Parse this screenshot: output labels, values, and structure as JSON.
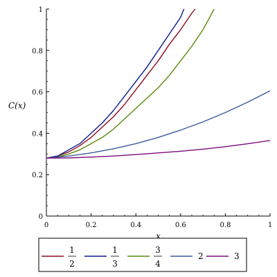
{
  "chart_data": {
    "type": "line",
    "title": "",
    "xlabel": "x",
    "ylabel": "C(x)",
    "xlim": [
      0,
      1
    ],
    "ylim": [
      0,
      1
    ],
    "xticks": [
      0,
      0.2,
      0.4,
      0.6,
      0.8,
      1
    ],
    "xtick_labels": [
      "0",
      "0.2",
      "0.4",
      "0.6",
      "0.8",
      "1"
    ],
    "yticks": [
      0,
      0.2,
      0.4,
      0.6,
      0.8,
      1
    ],
    "ytick_labels": [
      "0",
      "0.2",
      "0.4",
      "0.6",
      "0.8",
      "1"
    ],
    "grid": false,
    "legend_position": "bottom",
    "series": [
      {
        "name": "1/2",
        "label_num": "1",
        "label_den": "2",
        "color": "#8b0a1e",
        "x": [
          0,
          0.05,
          0.1,
          0.15,
          0.2,
          0.25,
          0.3,
          0.35,
          0.4,
          0.45,
          0.5,
          0.55,
          0.6,
          0.65,
          0.665
        ],
        "y": [
          0.28,
          0.29,
          0.31,
          0.34,
          0.38,
          0.43,
          0.48,
          0.54,
          0.61,
          0.68,
          0.75,
          0.83,
          0.9,
          0.98,
          1.0
        ]
      },
      {
        "name": "1/3",
        "label_num": "1",
        "label_den": "3",
        "color": "#0a1a8b",
        "x": [
          0,
          0.05,
          0.1,
          0.15,
          0.2,
          0.25,
          0.3,
          0.35,
          0.4,
          0.45,
          0.5,
          0.55,
          0.6,
          0.615
        ],
        "y": [
          0.28,
          0.29,
          0.32,
          0.35,
          0.4,
          0.45,
          0.51,
          0.58,
          0.65,
          0.72,
          0.8,
          0.88,
          0.96,
          1.0
        ]
      },
      {
        "name": "3/4",
        "label_num": "3",
        "label_den": "4",
        "color": "#5a8a0a",
        "x": [
          0,
          0.05,
          0.1,
          0.15,
          0.2,
          0.25,
          0.3,
          0.35,
          0.4,
          0.45,
          0.5,
          0.55,
          0.6,
          0.65,
          0.7,
          0.75
        ],
        "y": [
          0.28,
          0.285,
          0.3,
          0.32,
          0.35,
          0.38,
          0.42,
          0.47,
          0.52,
          0.57,
          0.62,
          0.68,
          0.75,
          0.82,
          0.9,
          1.0
        ]
      },
      {
        "name": "2",
        "label_text": "2",
        "color": "#3a5a9a",
        "x": [
          0,
          0.1,
          0.2,
          0.3,
          0.4,
          0.5,
          0.6,
          0.7,
          0.8,
          0.9,
          1.0
        ],
        "y": [
          0.28,
          0.29,
          0.305,
          0.325,
          0.35,
          0.38,
          0.415,
          0.455,
          0.5,
          0.55,
          0.605
        ]
      },
      {
        "name": "3",
        "label_text": "3",
        "color": "#7a0a7a",
        "x": [
          0,
          0.1,
          0.2,
          0.3,
          0.4,
          0.5,
          0.6,
          0.7,
          0.8,
          0.9,
          1.0
        ],
        "y": [
          0.28,
          0.281,
          0.285,
          0.29,
          0.297,
          0.305,
          0.313,
          0.323,
          0.335,
          0.349,
          0.365
        ]
      }
    ]
  }
}
